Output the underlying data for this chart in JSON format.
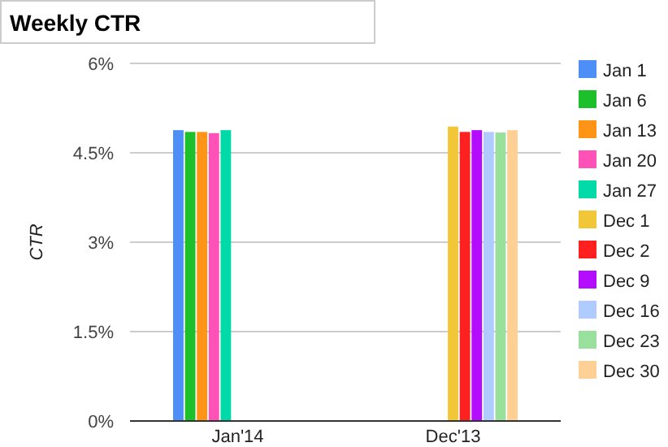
{
  "chart_data": {
    "type": "bar",
    "title": "Weekly CTR",
    "ylabel": "CTR",
    "categories": [
      "Jan'14",
      "Dec'13"
    ],
    "series": [
      {
        "name": "Jan 1",
        "color": "#4e8ef7",
        "values": [
          4.88,
          null
        ]
      },
      {
        "name": "Jan 6",
        "color": "#1dbf2a",
        "values": [
          4.85,
          null
        ]
      },
      {
        "name": "Jan 13",
        "color": "#ff9416",
        "values": [
          4.85,
          null
        ]
      },
      {
        "name": "Jan 20",
        "color": "#ff52b6",
        "values": [
          4.83,
          null
        ]
      },
      {
        "name": "Jan 27",
        "color": "#00d9a8",
        "values": [
          4.88,
          null
        ]
      },
      {
        "name": "Dec 1",
        "color": "#f2c737",
        "values": [
          null,
          4.94
        ]
      },
      {
        "name": "Dec 2",
        "color": "#ff2020",
        "values": [
          null,
          4.85
        ]
      },
      {
        "name": "Dec 9",
        "color": "#b30cff",
        "values": [
          null,
          4.88
        ]
      },
      {
        "name": "Dec 16",
        "color": "#b0cbff",
        "values": [
          null,
          4.85
        ]
      },
      {
        "name": "Dec 23",
        "color": "#98e09b",
        "values": [
          null,
          4.84
        ]
      },
      {
        "name": "Dec 30",
        "color": "#ffd095",
        "values": [
          null,
          4.88
        ]
      }
    ],
    "ylim": [
      0,
      6
    ],
    "yticks": [
      {
        "value": 0,
        "label": "0%"
      },
      {
        "value": 1.5,
        "label": "1.5%"
      },
      {
        "value": 3,
        "label": "3%"
      },
      {
        "value": 4.5,
        "label": "4.5%"
      },
      {
        "value": 6,
        "label": "6%"
      }
    ],
    "grid": "y",
    "legend": "right"
  }
}
